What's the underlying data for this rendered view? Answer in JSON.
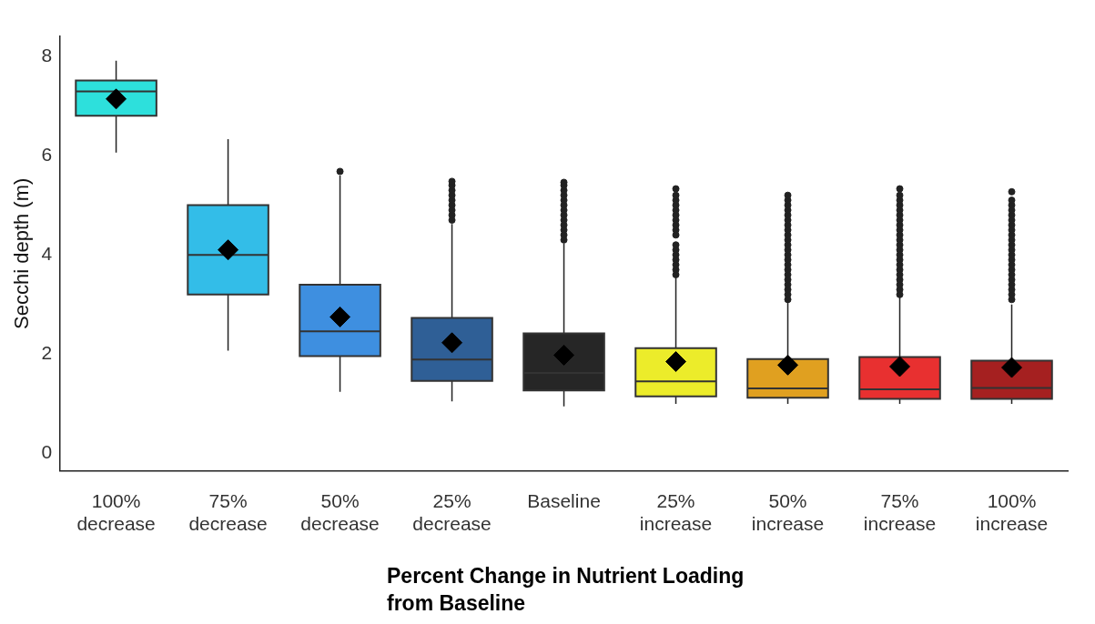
{
  "chart_data": {
    "type": "box",
    "xlabel": "Percent Change in Nutrient Loading from Baseline",
    "ylabel": "Secchi depth (m)",
    "categories": [
      "100% decrease",
      "75% decrease",
      "50% decrease",
      "25% decrease",
      "Baseline",
      "25% increase",
      "50% increase",
      "75% increase",
      "100% increase"
    ],
    "colors": [
      "#2de0dc",
      "#33bde8",
      "#3e8fe0",
      "#2f5f96",
      "#262626",
      "#ecec2a",
      "#e0a020",
      "#e83030",
      "#a52020"
    ],
    "boxes": [
      {
        "low": 6.06,
        "q1": 6.8,
        "median": 7.29,
        "q3": 7.51,
        "high": 7.91,
        "mean": 7.14
      },
      {
        "low": 2.07,
        "q1": 3.2,
        "median": 4.0,
        "q3": 5.0,
        "high": 6.33,
        "mean": 4.1
      },
      {
        "low": 1.24,
        "q1": 1.96,
        "median": 2.46,
        "q3": 3.4,
        "high": 5.6,
        "mean": 2.75,
        "outliers": [
          5.68
        ]
      },
      {
        "low": 1.05,
        "q1": 1.46,
        "median": 1.89,
        "q3": 2.73,
        "high": 4.62,
        "mean": 2.23,
        "outliers": [
          4.7,
          4.8,
          4.9,
          5.0,
          5.1,
          5.2,
          5.3,
          5.4,
          5.48
        ]
      },
      {
        "low": 0.95,
        "q1": 1.27,
        "median": 1.62,
        "q3": 2.42,
        "high": 4.23,
        "mean": 1.98,
        "outliers": [
          4.3,
          4.4,
          4.5,
          4.6,
          4.7,
          4.8,
          4.9,
          5.0,
          5.1,
          5.2,
          5.3,
          5.4,
          5.46
        ]
      },
      {
        "low": 1.0,
        "q1": 1.15,
        "median": 1.45,
        "q3": 2.12,
        "high": 3.54,
        "mean": 1.85,
        "outliers": [
          3.6,
          3.7,
          3.8,
          3.9,
          4.0,
          4.1,
          4.2,
          4.4,
          4.5,
          4.6,
          4.7,
          4.8,
          4.9,
          5.0,
          5.1,
          5.2,
          5.33
        ]
      },
      {
        "low": 1.0,
        "q1": 1.12,
        "median": 1.31,
        "q3": 1.9,
        "high": 3.08,
        "mean": 1.78,
        "outliers": [
          3.1,
          3.2,
          3.3,
          3.4,
          3.5,
          3.6,
          3.7,
          3.8,
          3.9,
          4.0,
          4.1,
          4.2,
          4.3,
          4.4,
          4.5,
          4.6,
          4.7,
          4.8,
          4.9,
          5.0,
          5.1,
          5.2
        ]
      },
      {
        "low": 1.0,
        "q1": 1.1,
        "median": 1.29,
        "q3": 1.94,
        "high": 3.19,
        "mean": 1.75,
        "outliers": [
          3.2,
          3.3,
          3.4,
          3.5,
          3.6,
          3.7,
          3.8,
          3.9,
          4.0,
          4.1,
          4.2,
          4.3,
          4.4,
          4.5,
          4.6,
          4.7,
          4.8,
          4.9,
          5.0,
          5.1,
          5.2,
          5.33
        ]
      },
      {
        "low": 1.0,
        "q1": 1.1,
        "median": 1.32,
        "q3": 1.87,
        "high": 3.0,
        "mean": 1.73,
        "outliers": [
          3.1,
          3.2,
          3.3,
          3.4,
          3.5,
          3.6,
          3.7,
          3.8,
          3.9,
          4.0,
          4.1,
          4.2,
          4.3,
          4.4,
          4.5,
          4.6,
          4.7,
          4.8,
          4.9,
          5.0,
          5.1,
          5.27
        ]
      }
    ],
    "ylim": [
      -0.35,
      8.4
    ],
    "yticks": [
      0,
      2,
      4,
      6,
      8
    ],
    "marker": "diamond"
  }
}
